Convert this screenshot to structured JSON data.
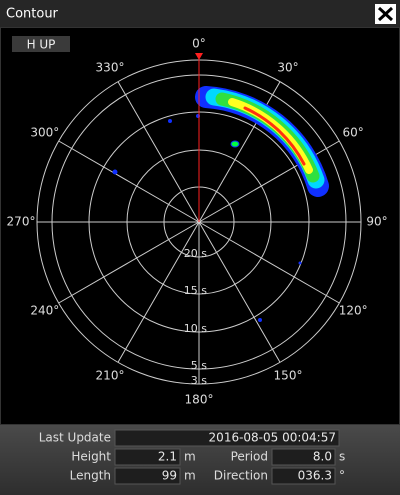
{
  "window": {
    "title": "Contour"
  },
  "toolbar": {
    "mode_button": "H UP"
  },
  "polar": {
    "angle_labels": [
      "0°",
      "30°",
      "60°",
      "90°",
      "120°",
      "150°",
      "180°",
      "210°",
      "240°",
      "270°",
      "300°",
      "330°"
    ],
    "ring_labels": [
      "20 s",
      "15 s",
      "10 s",
      "5 s",
      "3 s"
    ]
  },
  "info": {
    "last_update": {
      "label": "Last Update",
      "value": "2016-08-05 00:04:57"
    },
    "height": {
      "label": "Height",
      "value": "2.1",
      "unit": "m"
    },
    "period": {
      "label": "Period",
      "value": "8.0",
      "unit": "s"
    },
    "length": {
      "label": "Length",
      "value": "99",
      "unit": "m"
    },
    "direction": {
      "label": "Direction",
      "value": "036.3",
      "unit": "°"
    }
  }
}
